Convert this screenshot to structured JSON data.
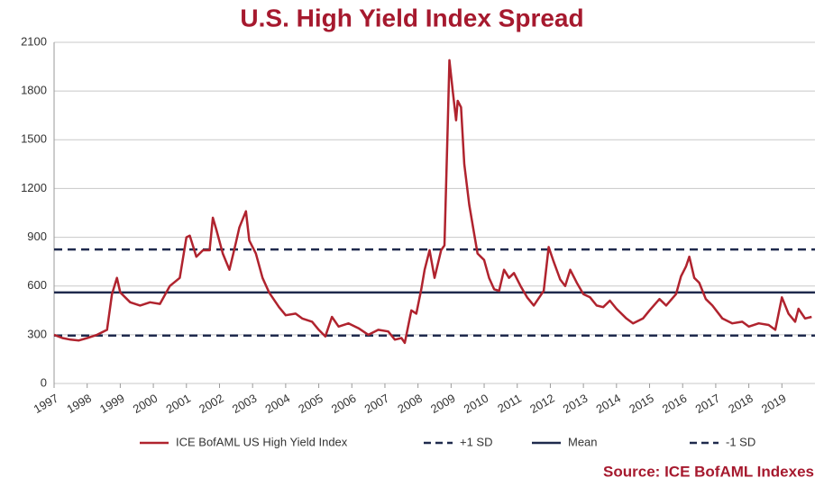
{
  "chart_data": {
    "type": "line",
    "title": "U.S. High Yield Index Spread",
    "source": "Source: ICE BofAML Indexes",
    "x": [
      1997.0,
      1997.25,
      1997.5,
      1997.75,
      1998.0,
      1998.3,
      1998.6,
      1998.75,
      1998.9,
      1999.0,
      1999.3,
      1999.6,
      1999.9,
      2000.2,
      2000.5,
      2000.8,
      2001.0,
      2001.1,
      2001.3,
      2001.5,
      2001.7,
      2001.8,
      2001.9,
      2002.1,
      2002.3,
      2002.5,
      2002.6,
      2002.8,
      2002.9,
      2003.1,
      2003.3,
      2003.5,
      2003.8,
      2004.0,
      2004.3,
      2004.5,
      2004.8,
      2005.0,
      2005.2,
      2005.4,
      2005.6,
      2005.9,
      2006.2,
      2006.5,
      2006.8,
      2007.1,
      2007.3,
      2007.5,
      2007.6,
      2007.8,
      2007.95,
      2008.1,
      2008.2,
      2008.35,
      2008.5,
      2008.7,
      2008.8,
      2008.9,
      2008.95,
      2009.05,
      2009.15,
      2009.2,
      2009.3,
      2009.4,
      2009.55,
      2009.7,
      2009.8,
      2010.0,
      2010.15,
      2010.3,
      2010.45,
      2010.6,
      2010.75,
      2010.9,
      2011.1,
      2011.3,
      2011.5,
      2011.8,
      2011.95,
      2012.1,
      2012.3,
      2012.45,
      2012.6,
      2012.8,
      2013.0,
      2013.2,
      2013.4,
      2013.6,
      2013.8,
      2014.0,
      2014.3,
      2014.5,
      2014.8,
      2015.0,
      2015.3,
      2015.5,
      2015.8,
      2015.95,
      2016.1,
      2016.2,
      2016.35,
      2016.5,
      2016.7,
      2016.9,
      2017.2,
      2017.5,
      2017.8,
      2018.0,
      2018.3,
      2018.6,
      2018.8,
      2019.0,
      2019.2,
      2019.4,
      2019.5,
      2019.7,
      2019.9
    ],
    "series": [
      {
        "name": "ICE BofAML US High Yield Index",
        "color": "#b0232e",
        "values": [
          300,
          280,
          270,
          265,
          280,
          300,
          330,
          550,
          650,
          560,
          500,
          480,
          500,
          490,
          600,
          650,
          900,
          910,
          780,
          820,
          820,
          1020,
          950,
          800,
          700,
          870,
          960,
          1060,
          880,
          800,
          650,
          560,
          470,
          420,
          430,
          400,
          380,
          330,
          290,
          410,
          350,
          370,
          340,
          300,
          330,
          320,
          270,
          280,
          250,
          450,
          430,
          580,
          700,
          820,
          650,
          820,
          850,
          1600,
          1990,
          1800,
          1620,
          1740,
          1700,
          1350,
          1100,
          920,
          800,
          760,
          650,
          580,
          570,
          700,
          650,
          680,
          600,
          530,
          480,
          570,
          840,
          750,
          640,
          600,
          700,
          620,
          550,
          530,
          480,
          470,
          510,
          460,
          400,
          370,
          400,
          450,
          520,
          480,
          550,
          660,
          720,
          780,
          650,
          620,
          520,
          480,
          400,
          370,
          380,
          350,
          370,
          360,
          330,
          530,
          430,
          380,
          460,
          400,
          410
        ]
      }
    ],
    "reference_lines": [
      {
        "name": "+1 SD",
        "value": 825,
        "color": "#1f2a4d",
        "dashed": true
      },
      {
        "name": "Mean",
        "value": 560,
        "color": "#1f2a4d",
        "dashed": false
      },
      {
        "name": "-1 SD",
        "value": 295,
        "color": "#1f2a4d",
        "dashed": true
      }
    ],
    "xlim": [
      1997,
      2020
    ],
    "xticks": [
      1997,
      1998,
      1999,
      2000,
      2001,
      2002,
      2003,
      2004,
      2005,
      2006,
      2007,
      2008,
      2009,
      2010,
      2011,
      2012,
      2013,
      2014,
      2015,
      2016,
      2017,
      2018,
      2019
    ],
    "ylim": [
      0,
      2100
    ],
    "yticks": [
      0,
      300,
      600,
      900,
      1200,
      1500,
      1800,
      2100
    ],
    "grid": true
  }
}
